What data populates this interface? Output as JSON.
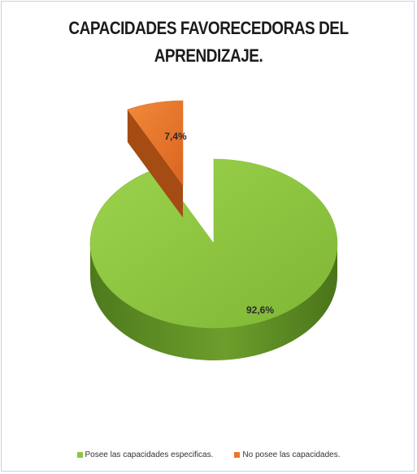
{
  "chart_data": {
    "type": "pie",
    "title": "CAPACIDADES FAVORECEDORAS DEL APRENDIZAJE.",
    "title_lines": [
      "CAPACIDADES FAVORECEDORAS DEL",
      "APRENDIZAJE."
    ],
    "three_d": true,
    "exploded_slice": "No posee las capacidades.",
    "legend_position": "bottom",
    "categories": [
      "Posee las capacidades especificas.",
      "No posee las capacidades."
    ],
    "values": [
      92.6,
      7.4
    ],
    "data_labels": [
      "92,6%",
      "7,4%"
    ],
    "colors": [
      "#8cc63f",
      "#e8762c"
    ]
  }
}
